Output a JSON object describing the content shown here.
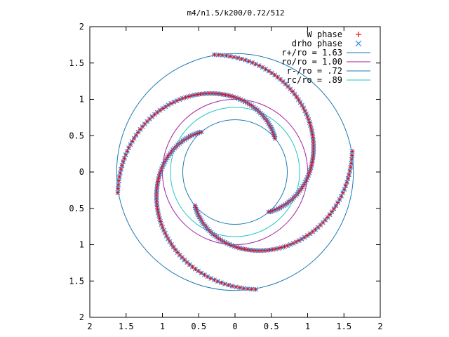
{
  "chart_data": {
    "type": "scatter",
    "title": "m4/n1.5/k200/0.72/512",
    "xlabel": "",
    "ylabel": "",
    "xlim": [
      2,
      -2
    ],
    "ylim": [
      -2,
      2
    ],
    "x_tick_labels": [
      "2",
      "1.5",
      "1",
      "0.5",
      "0",
      "0.5",
      "1",
      "1.5",
      "2"
    ],
    "y_tick_labels": [
      "2",
      "1.5",
      "1",
      "0.5",
      "0",
      "0.5",
      "1",
      "1.5",
      "2"
    ],
    "x_ticks": [
      2,
      1.5,
      1,
      0.5,
      0,
      -0.5,
      -1,
      -1.5,
      -2
    ],
    "y_ticks": [
      2,
      1.5,
      1,
      0.5,
      0,
      -0.5,
      -1,
      -1.5,
      -2
    ],
    "grid": false,
    "legend_position": "top-right",
    "circles": [
      {
        "name": "r+/ro = 1.63",
        "radius": 1.63,
        "color": "#1f78b4"
      },
      {
        "name": "ro/ro = 1.00",
        "radius": 1.0,
        "color": "#a020a0"
      },
      {
        "name": "r-/ro = .72",
        "radius": 0.72,
        "color": "#1f78b4"
      },
      {
        "name": "rc/ro = .89",
        "radius": 0.89,
        "color": "#22c7c7"
      }
    ],
    "series": [
      {
        "name": "W phase",
        "marker": "+",
        "color": "#ff0000"
      },
      {
        "name": "drho phase",
        "marker": "x",
        "color": "#3a8fe0"
      }
    ],
    "spiral_arms": [
      {
        "start_deg": 0,
        "points": 80
      },
      {
        "start_deg": 90,
        "points": 80
      },
      {
        "start_deg": 180,
        "points": 80
      },
      {
        "start_deg": 270,
        "points": 80
      }
    ]
  }
}
